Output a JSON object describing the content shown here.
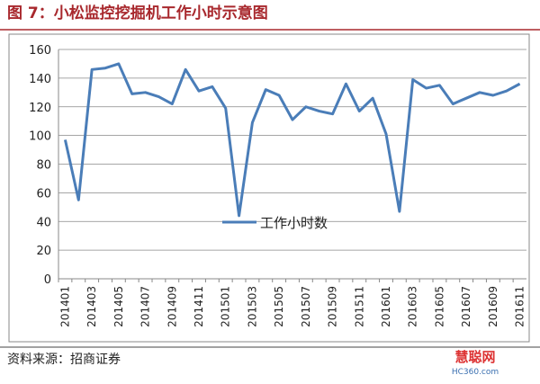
{
  "chart_data": {
    "type": "line",
    "title": "图 7：小松监控挖掘机工作小时示意图",
    "source": "资料来源：招商证券",
    "watermark": "慧聪网",
    "watermark_sub": "HC360.com",
    "categories": [
      "201401",
      null,
      "201403",
      null,
      "201405",
      null,
      "201407",
      null,
      "201409",
      null,
      "201411",
      null,
      "201501",
      null,
      "201503",
      null,
      "201505",
      null,
      "201507",
      null,
      "201509",
      null,
      "201511",
      null,
      "201601",
      null,
      "201603",
      null,
      "201605",
      null,
      "201607",
      null,
      "201609",
      null,
      "201611"
    ],
    "series": [
      {
        "name": "工作小时数",
        "color": "#4a7db8",
        "values": [
          97,
          55,
          146,
          147,
          150,
          129,
          130,
          127,
          122,
          146,
          131,
          134,
          119,
          44,
          109,
          132,
          128,
          111,
          120,
          117,
          115,
          136,
          117,
          126,
          101,
          47,
          139,
          133,
          135,
          122,
          126,
          130,
          128,
          131,
          136
        ]
      }
    ],
    "ylim": [
      0,
      160
    ],
    "yticks": [
      0,
      20,
      40,
      60,
      80,
      100,
      120,
      140,
      160
    ],
    "grid": true
  }
}
